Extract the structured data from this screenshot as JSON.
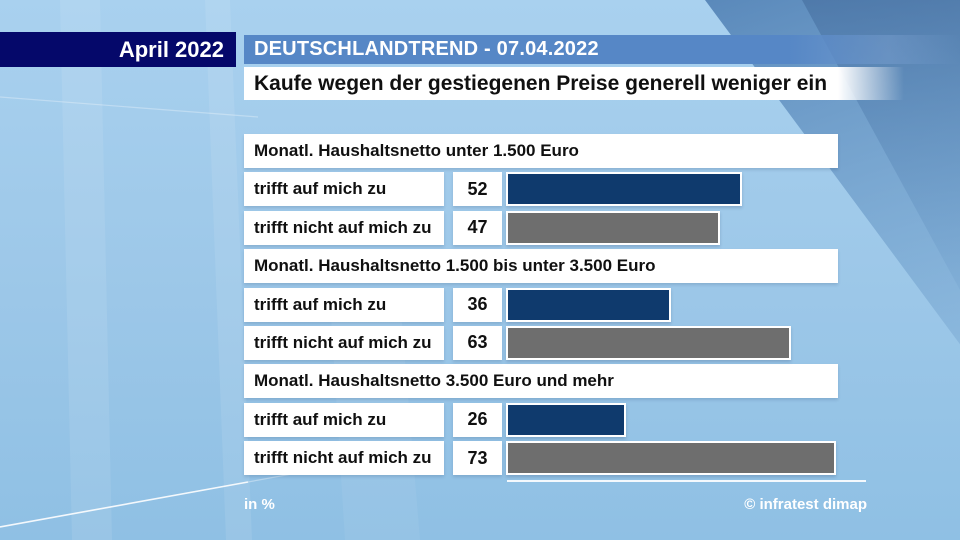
{
  "meta": {
    "month_label": "April 2022",
    "header": "DEUTSCHLANDTREND - 07.04.2022",
    "title": "Kaufe wegen der gestiegenen Preise generell weniger ein"
  },
  "footer": {
    "unit_label": "in %",
    "source_label": "© infratest dimap"
  },
  "colors": {
    "month_box": "#05086a",
    "header_strip": "#5687c6",
    "bar_yes": "#0f3a6d",
    "bar_no": "#6e6e6e",
    "background_light": "#9cc7e8",
    "background_dark_corner": "#4c7cb1"
  },
  "chart_data": {
    "type": "bar",
    "orientation": "horizontal",
    "unit": "%",
    "value_range": [
      0,
      100
    ],
    "legend": null,
    "groups": [
      {
        "header": "Monatl. Haushaltsnetto unter 1.500 Euro",
        "rows": [
          {
            "label": "trifft auf mich zu",
            "value": 52,
            "color_key": "yes"
          },
          {
            "label": "trifft nicht auf mich zu",
            "value": 47,
            "color_key": "no"
          }
        ]
      },
      {
        "header": "Monatl. Haushaltsnetto 1.500 bis unter 3.500 Euro",
        "rows": [
          {
            "label": "trifft auf mich zu",
            "value": 36,
            "color_key": "yes"
          },
          {
            "label": "trifft nicht auf mich zu",
            "value": 63,
            "color_key": "no"
          }
        ]
      },
      {
        "header": "Monatl. Haushaltsnetto 3.500 Euro und mehr",
        "rows": [
          {
            "label": "trifft auf mich zu",
            "value": 26,
            "color_key": "yes"
          },
          {
            "label": "trifft nicht auf mich zu",
            "value": 73,
            "color_key": "no"
          }
        ]
      }
    ]
  }
}
